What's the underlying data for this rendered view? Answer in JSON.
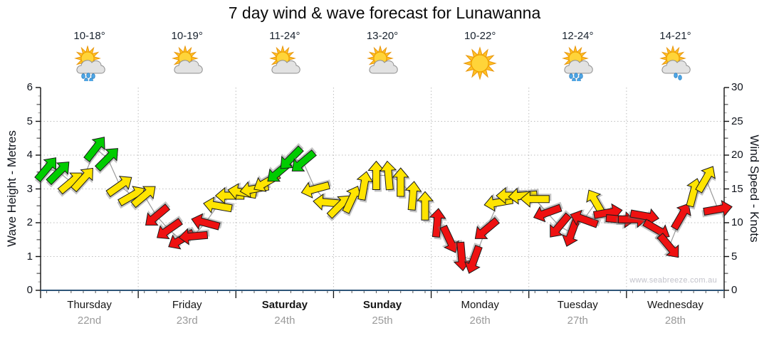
{
  "title": "7 day wind & wave forecast for Lunawanna",
  "watermark": "www.seabreeze.com.au",
  "days": [
    {
      "name": "Thursday",
      "date": "22nd",
      "temp": "10-18°",
      "icon": "showers",
      "weekend": false
    },
    {
      "name": "Friday",
      "date": "23rd",
      "temp": "10-19°",
      "icon": "partly-cloudy",
      "weekend": false
    },
    {
      "name": "Saturday",
      "date": "24th",
      "temp": "11-24°",
      "icon": "partly-cloudy",
      "weekend": true
    },
    {
      "name": "Sunday",
      "date": "25th",
      "temp": "13-20°",
      "icon": "partly-cloudy",
      "weekend": true
    },
    {
      "name": "Monday",
      "date": "26th",
      "temp": "10-22°",
      "icon": "sunny",
      "weekend": false
    },
    {
      "name": "Tuesday",
      "date": "27th",
      "temp": "12-24°",
      "icon": "showers",
      "weekend": false
    },
    {
      "name": "Wednesday",
      "date": "28th",
      "temp": "14-21°",
      "icon": "light-showers",
      "weekend": false
    }
  ],
  "chart_data": {
    "type": "wind-arrow-time-series",
    "title": "7 day wind & wave forecast for Lunawanna",
    "interval_hours": 3,
    "left_axis": {
      "label": "Wave Height - Metres",
      "min": 0,
      "max": 6,
      "ticks": [
        0,
        1,
        2,
        3,
        4,
        5,
        6
      ]
    },
    "right_axis": {
      "label": "Wind Speed - Knots",
      "min": 0,
      "max": 30,
      "ticks": [
        0,
        5,
        10,
        15,
        20,
        25,
        30
      ]
    },
    "grid": true,
    "speed_colors": [
      {
        "min_knots": 17.5,
        "color": "#00CC00"
      },
      {
        "min_knots": 12.5,
        "color": "#FFE400"
      },
      {
        "min_knots": 0,
        "color": "#EE1111"
      }
    ],
    "speed_knots": [
      18,
      17.5,
      16,
      16.5,
      21,
      19.5,
      15.5,
      14,
      14,
      11,
      9,
      7.5,
      8,
      10,
      12.5,
      14,
      14.5,
      15,
      16,
      17.5,
      19.5,
      19,
      15,
      13,
      12.5,
      13.5,
      15.5,
      17,
      17,
      16,
      14,
      12.5,
      10,
      7.5,
      5,
      4.5,
      9,
      13,
      14,
      14,
      13.5,
      11.5,
      9.5,
      8.5,
      10.5,
      13,
      11.5,
      10.5,
      10.5,
      11,
      9,
      6.5,
      11,
      14.5,
      16.5,
      12
    ],
    "direction_deg": [
      40,
      45,
      50,
      42,
      38,
      45,
      55,
      60,
      50,
      230,
      235,
      240,
      265,
      285,
      280,
      270,
      280,
      260,
      240,
      230,
      225,
      230,
      255,
      275,
      45,
      25,
      10,
      0,
      355,
      0,
      5,
      0,
      5,
      155,
      175,
      200,
      230,
      260,
      270,
      265,
      270,
      250,
      220,
      200,
      290,
      330,
      80,
      95,
      90,
      100,
      120,
      140,
      30,
      15,
      30,
      80
    ]
  }
}
